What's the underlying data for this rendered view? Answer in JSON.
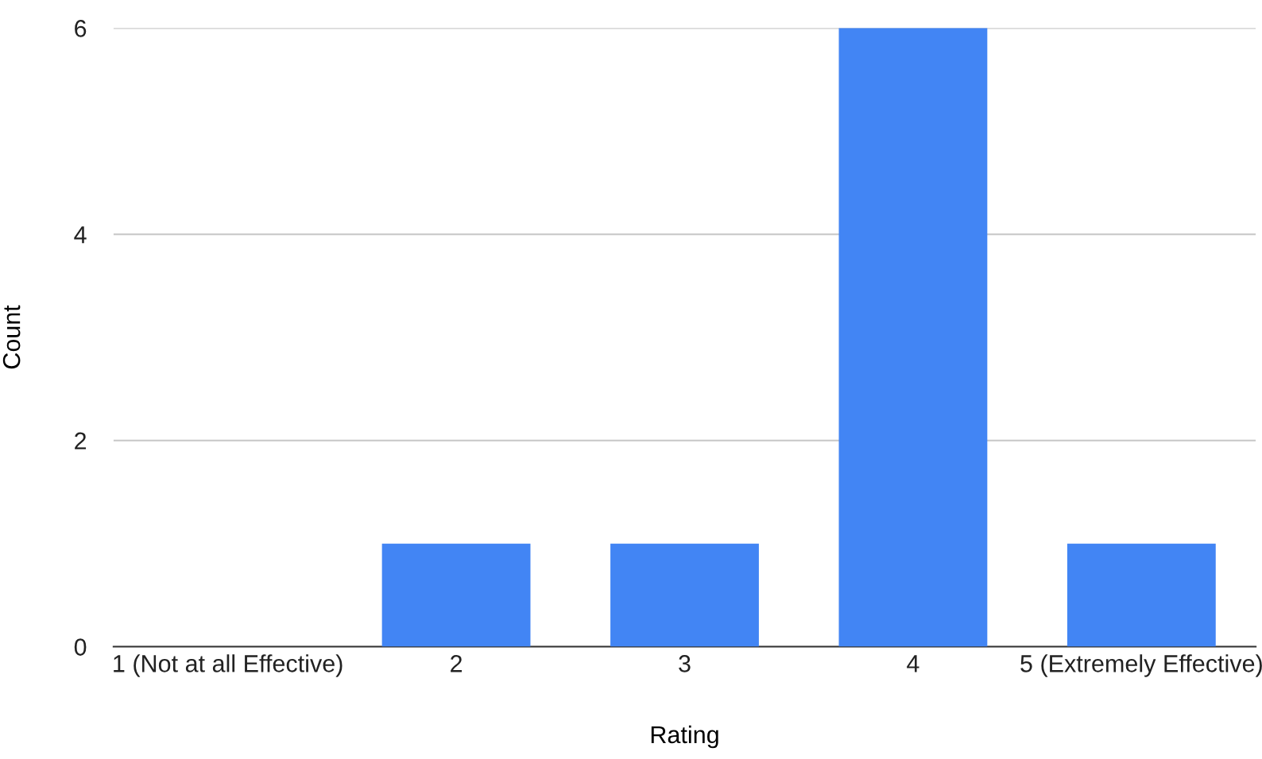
{
  "chart_data": {
    "type": "bar",
    "xlabel": "Rating",
    "ylabel": "Count",
    "categories": [
      "1 (Not at all Effective)",
      "2",
      "3",
      "4",
      "5 (Extremely Effective)"
    ],
    "values": [
      0,
      1,
      1,
      6,
      1
    ],
    "color": "#4285f4",
    "ylim": [
      0,
      6
    ],
    "yticks": [
      0,
      2,
      4,
      6
    ],
    "grid": "y",
    "legend": false
  }
}
